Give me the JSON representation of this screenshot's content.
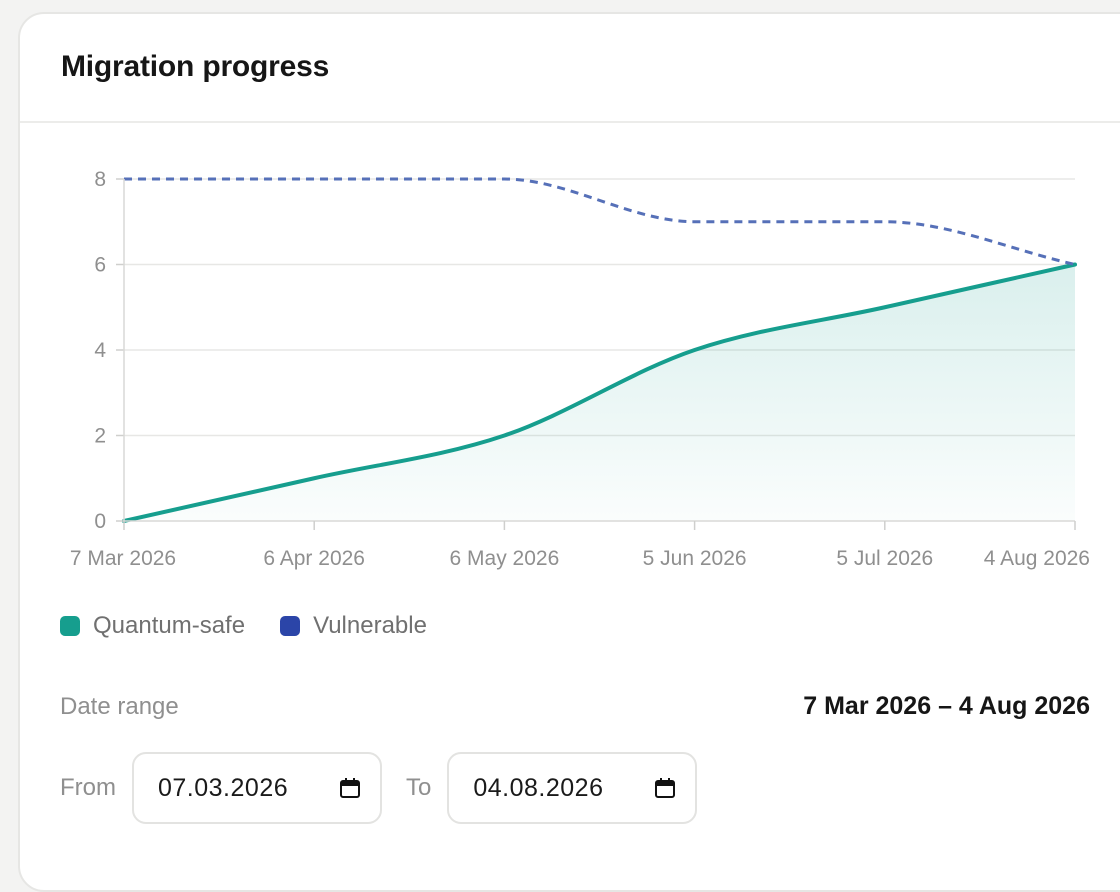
{
  "card": {
    "title": "Migration progress"
  },
  "legend": [
    {
      "label": "Quantum-safe",
      "color": "#169e8e"
    },
    {
      "label": "Vulnerable",
      "color": "#2b45a8"
    }
  ],
  "date_range": {
    "label": "Date range",
    "value": "7 Mar 2026 – 4 Aug 2026"
  },
  "from": {
    "label": "From",
    "value": "07.03.2026",
    "icon": "calendar-icon"
  },
  "to": {
    "label": "To",
    "value": "04.08.2026",
    "icon": "calendar-icon"
  },
  "colors": {
    "quantum_safe": "#169e8e",
    "vulnerable_line": "#5670b8",
    "vulnerable_legend": "#2b45a8",
    "grid": "#e7e7e5",
    "tick_text": "#8f8f8f"
  },
  "chart_data": {
    "type": "line",
    "x_ticks": [
      {
        "date": "2026-03-07",
        "label": "7 Mar 2026"
      },
      {
        "date": "2026-04-06",
        "label": "6 Apr 2026"
      },
      {
        "date": "2026-05-06",
        "label": "6 May 2026"
      },
      {
        "date": "2026-06-05",
        "label": "5 Jun 2026"
      },
      {
        "date": "2026-07-05",
        "label": "5 Jul 2026"
      },
      {
        "date": "2026-08-04",
        "label": "4 Aug 2026"
      }
    ],
    "y_ticks": [
      0,
      2,
      4,
      6,
      8
    ],
    "ylim": [
      0,
      8
    ],
    "xlim": [
      "2026-03-07",
      "2026-08-04"
    ],
    "grid": true,
    "legend_position": "bottom-left",
    "series": [
      {
        "name": "Quantum-safe",
        "style": "solid-area",
        "points": [
          {
            "x": "2026-03-07",
            "y": 0
          },
          {
            "x": "2026-04-06",
            "y": 1
          },
          {
            "x": "2026-05-06",
            "y": 2
          },
          {
            "x": "2026-06-05",
            "y": 4
          },
          {
            "x": "2026-07-05",
            "y": 5
          },
          {
            "x": "2026-08-04",
            "y": 6
          }
        ]
      },
      {
        "name": "Vulnerable",
        "style": "dashed",
        "points": [
          {
            "x": "2026-03-07",
            "y": 8
          },
          {
            "x": "2026-04-06",
            "y": 8
          },
          {
            "x": "2026-05-06",
            "y": 8
          },
          {
            "x": "2026-06-05",
            "y": 7
          },
          {
            "x": "2026-07-05",
            "y": 7
          },
          {
            "x": "2026-08-04",
            "y": 6
          }
        ]
      }
    ]
  }
}
